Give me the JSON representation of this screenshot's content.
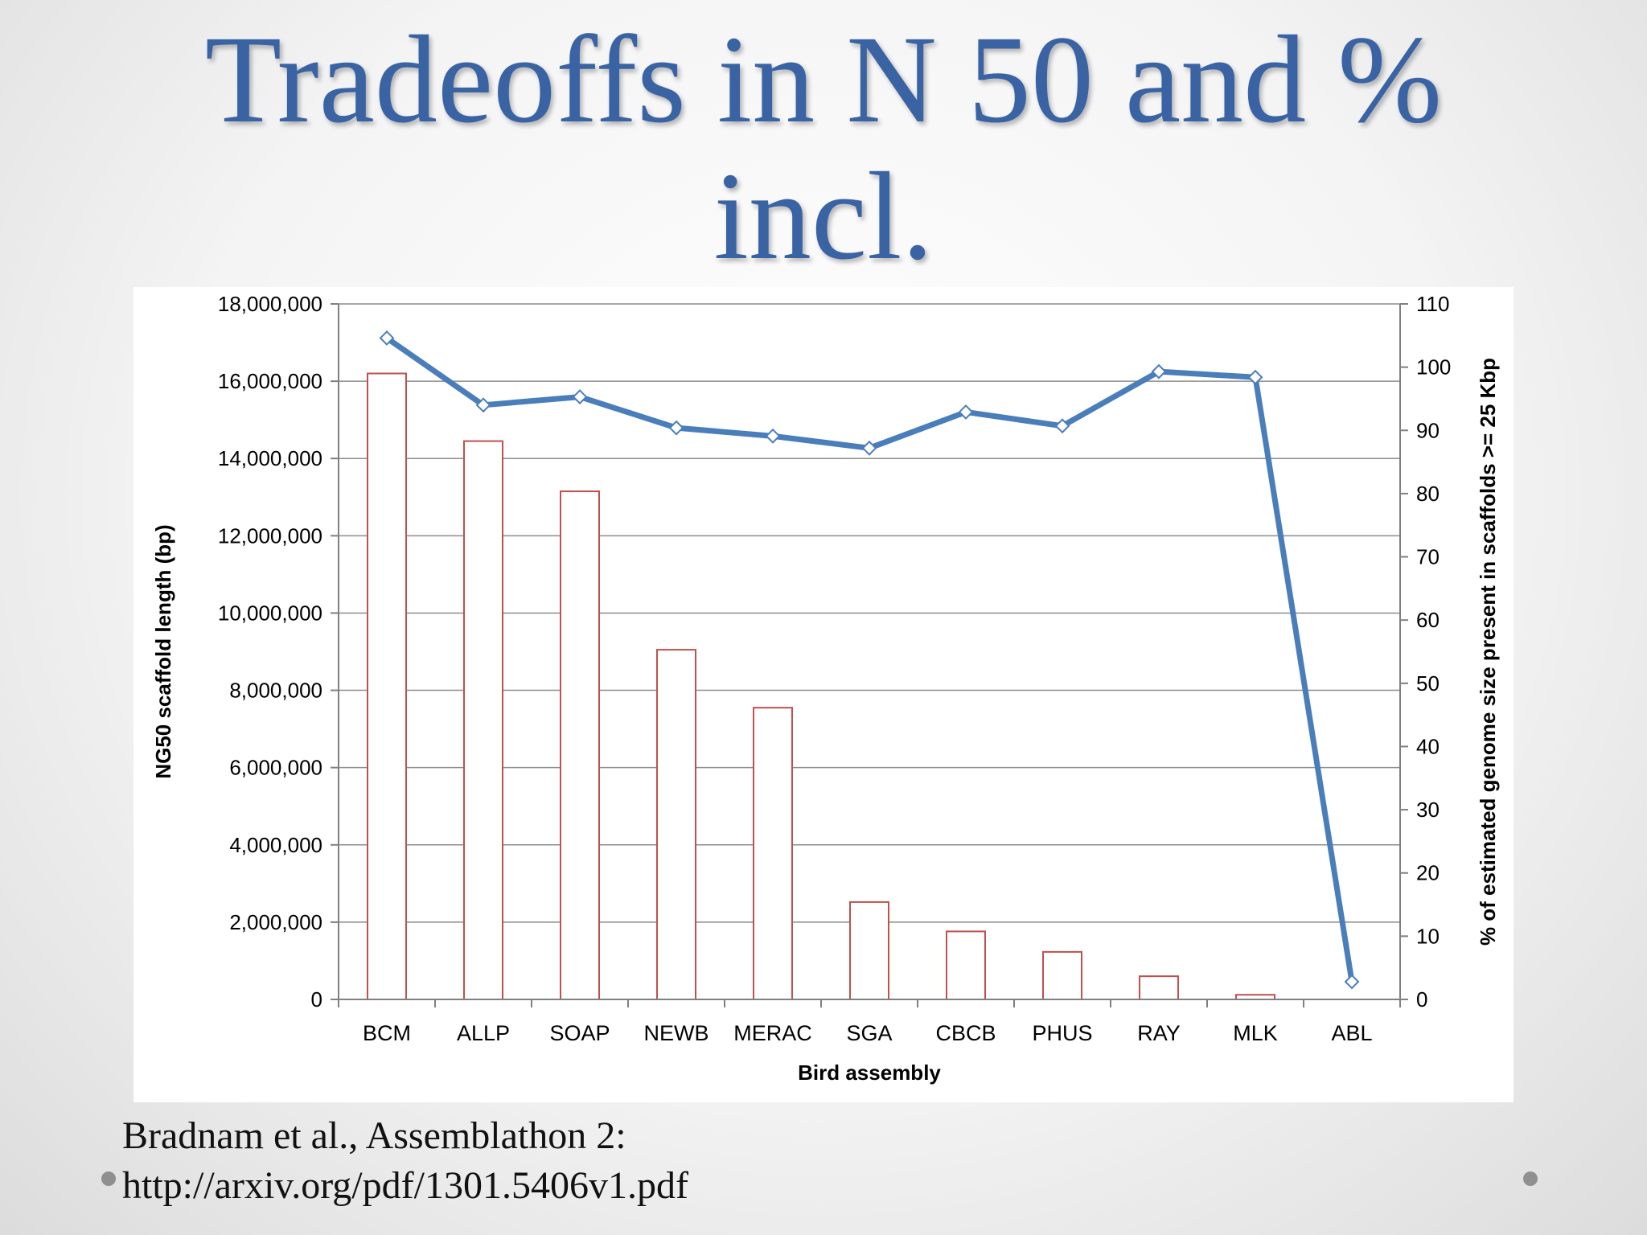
{
  "slide": {
    "title_line1": "Tradeoffs in N 50 and %",
    "title_line2": "incl.",
    "citation_line1": "Bradnam et al., Assemblathon 2:",
    "citation_line2": "http://arxiv.org/pdf/1301.5406v1.pdf"
  },
  "chart_data": {
    "type": "bar",
    "title": "",
    "xlabel": "Bird assembly",
    "ylabel": "NG50 scaffold length (bp)",
    "y2label": "% of estimated genome size present in scaffolds >= 25 Kbp",
    "categories": [
      "BCM",
      "ALLP",
      "SOAP",
      "NEWB",
      "MERAC",
      "SGA",
      "CBCB",
      "PHUS",
      "RAY",
      "MLK",
      "ABL"
    ],
    "ylim": [
      0,
      18000000
    ],
    "y2lim": [
      0,
      110
    ],
    "yticks": [
      "0",
      "2,000,000",
      "4,000,000",
      "6,000,000",
      "8,000,000",
      "10,000,000",
      "12,000,000",
      "14,000,000",
      "16,000,000",
      "18,000,000"
    ],
    "y2ticks": [
      "0",
      "10",
      "20",
      "30",
      "40",
      "50",
      "60",
      "70",
      "80",
      "90",
      "100",
      "110"
    ],
    "grid": true,
    "legend": "none",
    "series": [
      {
        "kind": "bar",
        "axis": "left",
        "color": "#c0504d",
        "values": [
          16200000,
          14450000,
          13150000,
          9050000,
          7550000,
          2520000,
          1760000,
          1230000,
          600000,
          120000,
          0
        ]
      },
      {
        "kind": "line",
        "axis": "right",
        "color": "#4a7ebb",
        "values": [
          104.6,
          94.0,
          95.3,
          90.4,
          89.1,
          87.2,
          92.9,
          90.7,
          99.3,
          98.4,
          2.8
        ]
      }
    ]
  }
}
